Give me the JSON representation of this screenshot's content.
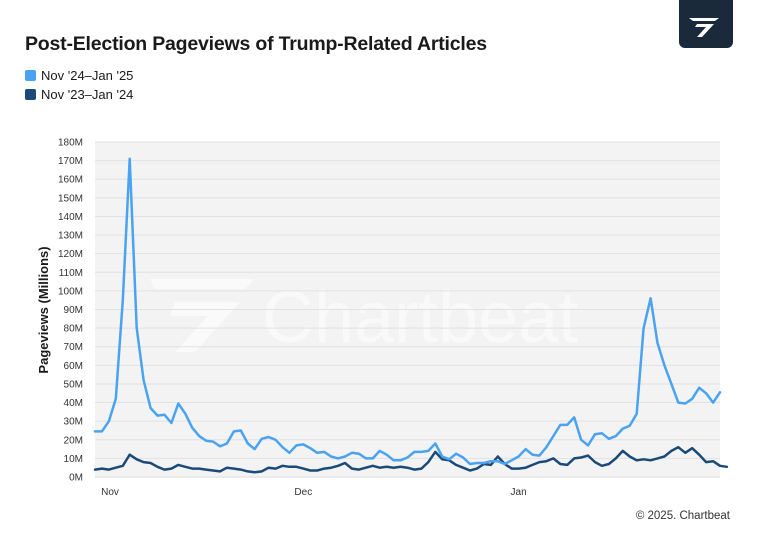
{
  "chart_data": {
    "type": "line",
    "title": "Post-Election Pageviews of Trump-Related Articles",
    "ylabel": "Pageviews (Millions)",
    "ylim": [
      0,
      180
    ],
    "yticks": [
      "0M",
      "10M",
      "20M",
      "30M",
      "40M",
      "50M",
      "60M",
      "70M",
      "80M",
      "90M",
      "100M",
      "110M",
      "120M",
      "130M",
      "140M",
      "150M",
      "160M",
      "170M",
      "180M"
    ],
    "xticks": [
      {
        "label": "Nov",
        "day": 0
      },
      {
        "label": "Dec",
        "day": 30
      },
      {
        "label": "Jan",
        "day": 61
      }
    ],
    "grid": true,
    "legend_position": "top-left",
    "series": [
      {
        "name": "Nov '24–Jan '25",
        "color": "#4aa3f0",
        "values": [
          24.5,
          24.5,
          30,
          42,
          95,
          171,
          80,
          52,
          37,
          33,
          33.5,
          29,
          39.5,
          34,
          26.5,
          22,
          19.5,
          19,
          16.5,
          18,
          24.5,
          25,
          18,
          15,
          20.5,
          21.5,
          20,
          16,
          13,
          17,
          17.5,
          15.5,
          13,
          13.5,
          11,
          10,
          11,
          13,
          12.5,
          10,
          10,
          14,
          12,
          9,
          9,
          10.5,
          13.5,
          13.5,
          14,
          18,
          11,
          9.5,
          12.5,
          10.5,
          7,
          7.5,
          7.5,
          8.5,
          8.5,
          7,
          9,
          11,
          15,
          12,
          11.5,
          16,
          22,
          28,
          28,
          32,
          20,
          17,
          23,
          23.5,
          20.5,
          22,
          26,
          27.5,
          34,
          80,
          96,
          72,
          60,
          50,
          40,
          39.5,
          42,
          48,
          45,
          40,
          45.5
        ]
      },
      {
        "name": "Nov '23–Jan '24",
        "color": "#1b4a78",
        "values": [
          4,
          4.5,
          4,
          5,
          6,
          12,
          9.5,
          8,
          7.5,
          5.5,
          4,
          4.5,
          6.5,
          5.5,
          4.5,
          4.5,
          4,
          3.5,
          3,
          5,
          4.5,
          4,
          3,
          2.5,
          3,
          5,
          4.5,
          6,
          5.5,
          5.5,
          4.5,
          3.5,
          3.5,
          4.5,
          5,
          6,
          7.5,
          4.5,
          4,
          5,
          6,
          5,
          5.5,
          5,
          5.5,
          5,
          4,
          4.5,
          8,
          13.5,
          9.5,
          9,
          6.5,
          5,
          3.5,
          4.5,
          7,
          6.5,
          11,
          7,
          4.5,
          4.5,
          5,
          6.5,
          8,
          8.5,
          10,
          7,
          6.5,
          10,
          10.5,
          11.5,
          8,
          6,
          7,
          10,
          14,
          11,
          9,
          9.5,
          9,
          10,
          11,
          14,
          16,
          13,
          15.5,
          12,
          8,
          8.5,
          6,
          5.5
        ]
      }
    ]
  },
  "legend": [
    "Nov '24–Jan '25",
    "Nov '23–Jan '24"
  ],
  "colors": {
    "current": "#4aa3f0",
    "previous": "#1b4a78",
    "logo_bg": "#1b2a3a"
  },
  "logo": {
    "icon": "chartbeat-logo-icon"
  },
  "watermark": {
    "text": "Chartbeat"
  },
  "footer": {
    "copyright": "© 2025. Chartbeat"
  }
}
